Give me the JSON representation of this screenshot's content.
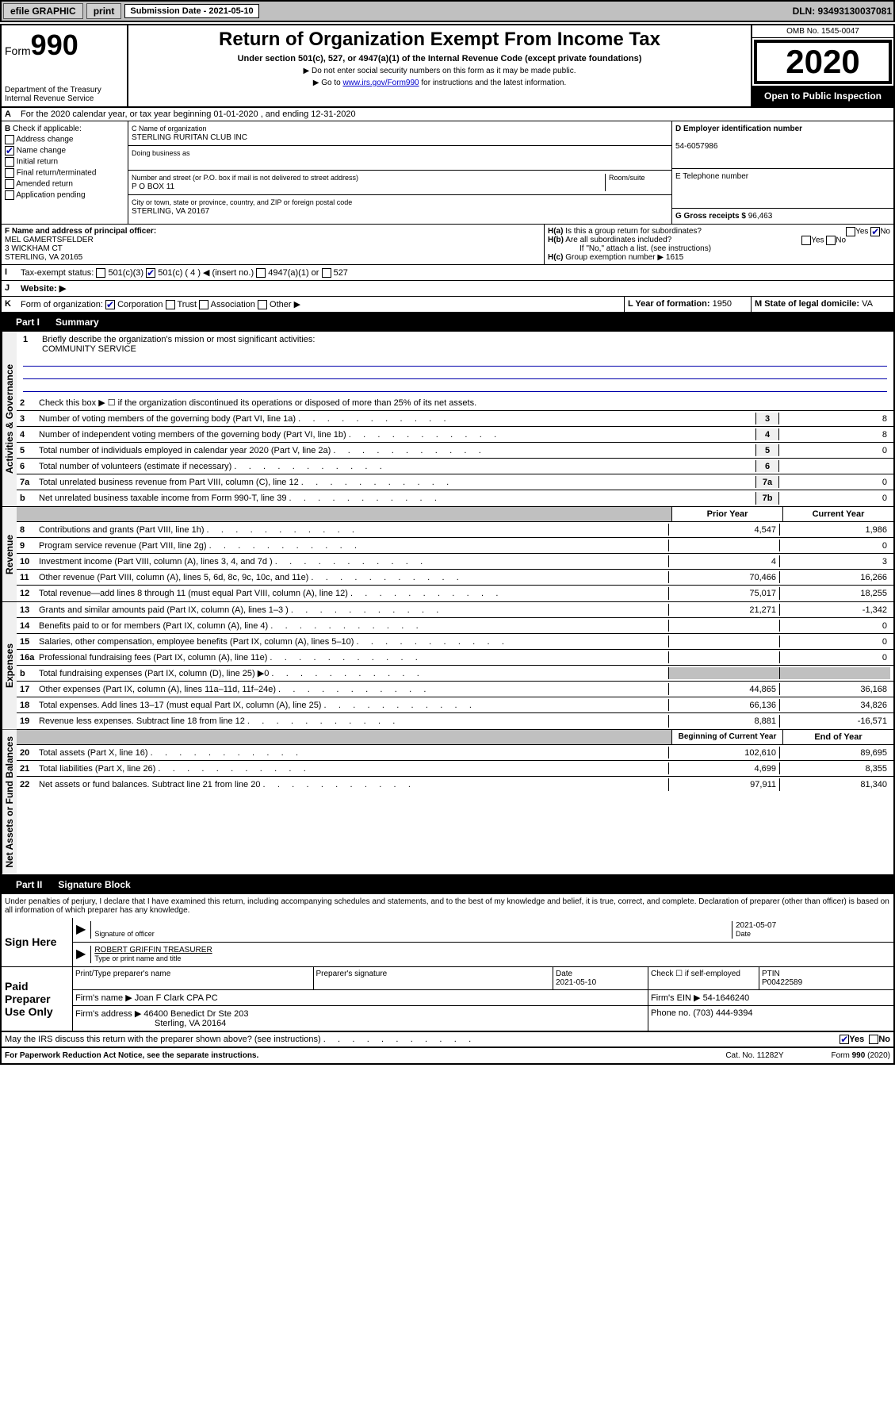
{
  "topbar": {
    "efile": "efile GRAPHIC",
    "print": "print",
    "sub_label": "Submission Date - 2021-05-10",
    "dln": "DLN: 93493130037081"
  },
  "header": {
    "form_prefix": "Form",
    "form_num": "990",
    "dept": "Department of the Treasury\nInternal Revenue Service",
    "title": "Return of Organization Exempt From Income Tax",
    "sub": "Under section 501(c), 527, or 4947(a)(1) of the Internal Revenue Code (except private foundations)",
    "note1": "▶ Do not enter social security numbers on this form as it may be made public.",
    "note2_pre": "▶ Go to ",
    "note2_link": "www.irs.gov/Form990",
    "note2_post": " for instructions and the latest information.",
    "omb": "OMB No. 1545-0047",
    "year": "2020",
    "open": "Open to Public Inspection"
  },
  "row_a": {
    "text": "For the 2020 calendar year, or tax year beginning 01-01-2020     , and ending 12-31-2020",
    "prefix": "A"
  },
  "section_b": {
    "label": "Check if applicable:",
    "items": [
      "Address change",
      "Name change",
      "Initial return",
      "Final return/terminated",
      "Amended return",
      "Application pending"
    ],
    "checked_idx": 1
  },
  "section_c": {
    "name_label": "C Name of organization",
    "name": "STERLING RURITAN CLUB INC",
    "dba_label": "Doing business as",
    "addr_label": "Number and street (or P.O. box if mail is not delivered to street address)",
    "room_label": "Room/suite",
    "addr": "P O BOX 11",
    "city_label": "City or town, state or province, country, and ZIP or foreign postal code",
    "city": "STERLING, VA  20167"
  },
  "section_de": {
    "d_label": "D Employer identification number",
    "d_val": "54-6057986",
    "e_label": "E Telephone number",
    "g_label": "G Gross receipts $",
    "g_val": "96,463"
  },
  "section_f": {
    "label": "F  Name and address of principal officer:",
    "name": "MEL GAMERTSFELDER",
    "addr1": "3 WICKHAM CT",
    "addr2": "STERLING, VA  20165"
  },
  "section_h": {
    "ha_label": "Is this a group return for subordinates?",
    "ha_prefix": "H(a)",
    "hb_label": "Are all subordinates included?",
    "hb_prefix": "H(b)",
    "hb_note": "If \"No,\" attach a list. (see instructions)",
    "hc_prefix": "H(c)",
    "hc_label": "Group exemption number ▶",
    "hc_val": "1615",
    "yes": "Yes",
    "no": "No"
  },
  "section_i": {
    "label": "Tax-exempt status:",
    "prefix": "I",
    "opts": [
      "501(c)(3)",
      "501(c) ( 4 ) ◀ (insert no.)",
      "4947(a)(1) or",
      "527"
    ]
  },
  "section_j": {
    "prefix": "J",
    "label": "Website: ▶"
  },
  "section_k": {
    "prefix": "K",
    "label": "Form of organization:",
    "opts": [
      "Corporation",
      "Trust",
      "Association",
      "Other ▶"
    ],
    "l_label": "L Year of formation:",
    "l_val": "1950",
    "m_label": "M State of legal domicile:",
    "m_val": "VA"
  },
  "part1": {
    "num": "Part I",
    "title": "Summary"
  },
  "mission": {
    "label": "Briefly describe the organization's mission or most significant activities:",
    "num": "1",
    "text": "COMMUNITY SERVICE"
  },
  "gov_lines": [
    {
      "n": "2",
      "t": "Check this box ▶ ☐  if the organization discontinued its operations or disposed of more than 25% of its net assets."
    },
    {
      "n": "3",
      "t": "Number of voting members of the governing body (Part VI, line 1a)",
      "box": "3",
      "v": "8"
    },
    {
      "n": "4",
      "t": "Number of independent voting members of the governing body (Part VI, line 1b)",
      "box": "4",
      "v": "8"
    },
    {
      "n": "5",
      "t": "Total number of individuals employed in calendar year 2020 (Part V, line 2a)",
      "box": "5",
      "v": "0"
    },
    {
      "n": "6",
      "t": "Total number of volunteers (estimate if necessary)",
      "box": "6",
      "v": ""
    },
    {
      "n": "7a",
      "t": "Total unrelated business revenue from Part VIII, column (C), line 12",
      "box": "7a",
      "v": "0"
    },
    {
      "n": "b",
      "t": "Net unrelated business taxable income from Form 990-T, line 39",
      "box": "7b",
      "v": "0"
    }
  ],
  "col_headers": {
    "prior": "Prior Year",
    "current": "Current Year",
    "beg": "Beginning of Current Year",
    "end": "End of Year"
  },
  "revenue": [
    {
      "n": "8",
      "t": "Contributions and grants (Part VIII, line 1h)",
      "p": "4,547",
      "c": "1,986"
    },
    {
      "n": "9",
      "t": "Program service revenue (Part VIII, line 2g)",
      "p": "",
      "c": "0"
    },
    {
      "n": "10",
      "t": "Investment income (Part VIII, column (A), lines 3, 4, and 7d )",
      "p": "4",
      "c": "3"
    },
    {
      "n": "11",
      "t": "Other revenue (Part VIII, column (A), lines 5, 6d, 8c, 9c, 10c, and 11e)",
      "p": "70,466",
      "c": "16,266"
    },
    {
      "n": "12",
      "t": "Total revenue—add lines 8 through 11 (must equal Part VIII, column (A), line 12)",
      "p": "75,017",
      "c": "18,255"
    }
  ],
  "expenses": [
    {
      "n": "13",
      "t": "Grants and similar amounts paid (Part IX, column (A), lines 1–3 )",
      "p": "21,271",
      "c": "-1,342"
    },
    {
      "n": "14",
      "t": "Benefits paid to or for members (Part IX, column (A), line 4)",
      "p": "",
      "c": "0"
    },
    {
      "n": "15",
      "t": "Salaries, other compensation, employee benefits (Part IX, column (A), lines 5–10)",
      "p": "",
      "c": "0"
    },
    {
      "n": "16a",
      "t": "Professional fundraising fees (Part IX, column (A), line 11e)",
      "p": "",
      "c": "0"
    },
    {
      "n": "b",
      "t": "Total fundraising expenses (Part IX, column (D), line 25) ▶0",
      "p": "shaded",
      "c": "shaded"
    },
    {
      "n": "17",
      "t": "Other expenses (Part IX, column (A), lines 11a–11d, 11f–24e)",
      "p": "44,865",
      "c": "36,168"
    },
    {
      "n": "18",
      "t": "Total expenses. Add lines 13–17 (must equal Part IX, column (A), line 25)",
      "p": "66,136",
      "c": "34,826"
    },
    {
      "n": "19",
      "t": "Revenue less expenses. Subtract line 18 from line 12",
      "p": "8,881",
      "c": "-16,571"
    }
  ],
  "netassets": [
    {
      "n": "20",
      "t": "Total assets (Part X, line 16)",
      "p": "102,610",
      "c": "89,695"
    },
    {
      "n": "21",
      "t": "Total liabilities (Part X, line 26)",
      "p": "4,699",
      "c": "8,355"
    },
    {
      "n": "22",
      "t": "Net assets or fund balances. Subtract line 21 from line 20",
      "p": "97,911",
      "c": "81,340"
    }
  ],
  "vlabels": {
    "gov": "Activities & Governance",
    "rev": "Revenue",
    "exp": "Expenses",
    "net": "Net Assets or Fund Balances"
  },
  "part2": {
    "num": "Part II",
    "title": "Signature Block"
  },
  "perjury": "Under penalties of perjury, I declare that I have examined this return, including accompanying schedules and statements, and to the best of my knowledge and belief, it is true, correct, and complete. Declaration of preparer (other than officer) is based on all information of which preparer has any knowledge.",
  "sign": {
    "here": "Sign Here",
    "sig_label": "Signature of officer",
    "date": "2021-05-07",
    "date_label": "Date",
    "name": "ROBERT GRIFFIN  TREASURER",
    "name_label": "Type or print name and title"
  },
  "paid": {
    "label": "Paid Preparer Use Only",
    "h1": "Print/Type preparer's name",
    "h2": "Preparer's signature",
    "h3": "Date",
    "h4_pre": "Check ☐ if self-employed",
    "h5": "PTIN",
    "date": "2021-05-10",
    "ptin": "P00422589",
    "firm_name_label": "Firm's name      ▶",
    "firm_name": "Joan F Clark CPA PC",
    "firm_ein_label": "Firm's EIN ▶",
    "firm_ein": "54-1646240",
    "firm_addr_label": "Firm's address ▶",
    "firm_addr1": "46400 Benedict Dr Ste 203",
    "firm_addr2": "Sterling, VA  20164",
    "phone_label": "Phone no.",
    "phone": "(703) 444-9394"
  },
  "discuss": {
    "text": "May the IRS discuss this return with the preparer shown above? (see instructions)",
    "yes": "Yes",
    "no": "No"
  },
  "footer": {
    "left": "For Paperwork Reduction Act Notice, see the separate instructions.",
    "mid": "Cat. No. 11282Y",
    "right": "Form 990 (2020)"
  }
}
